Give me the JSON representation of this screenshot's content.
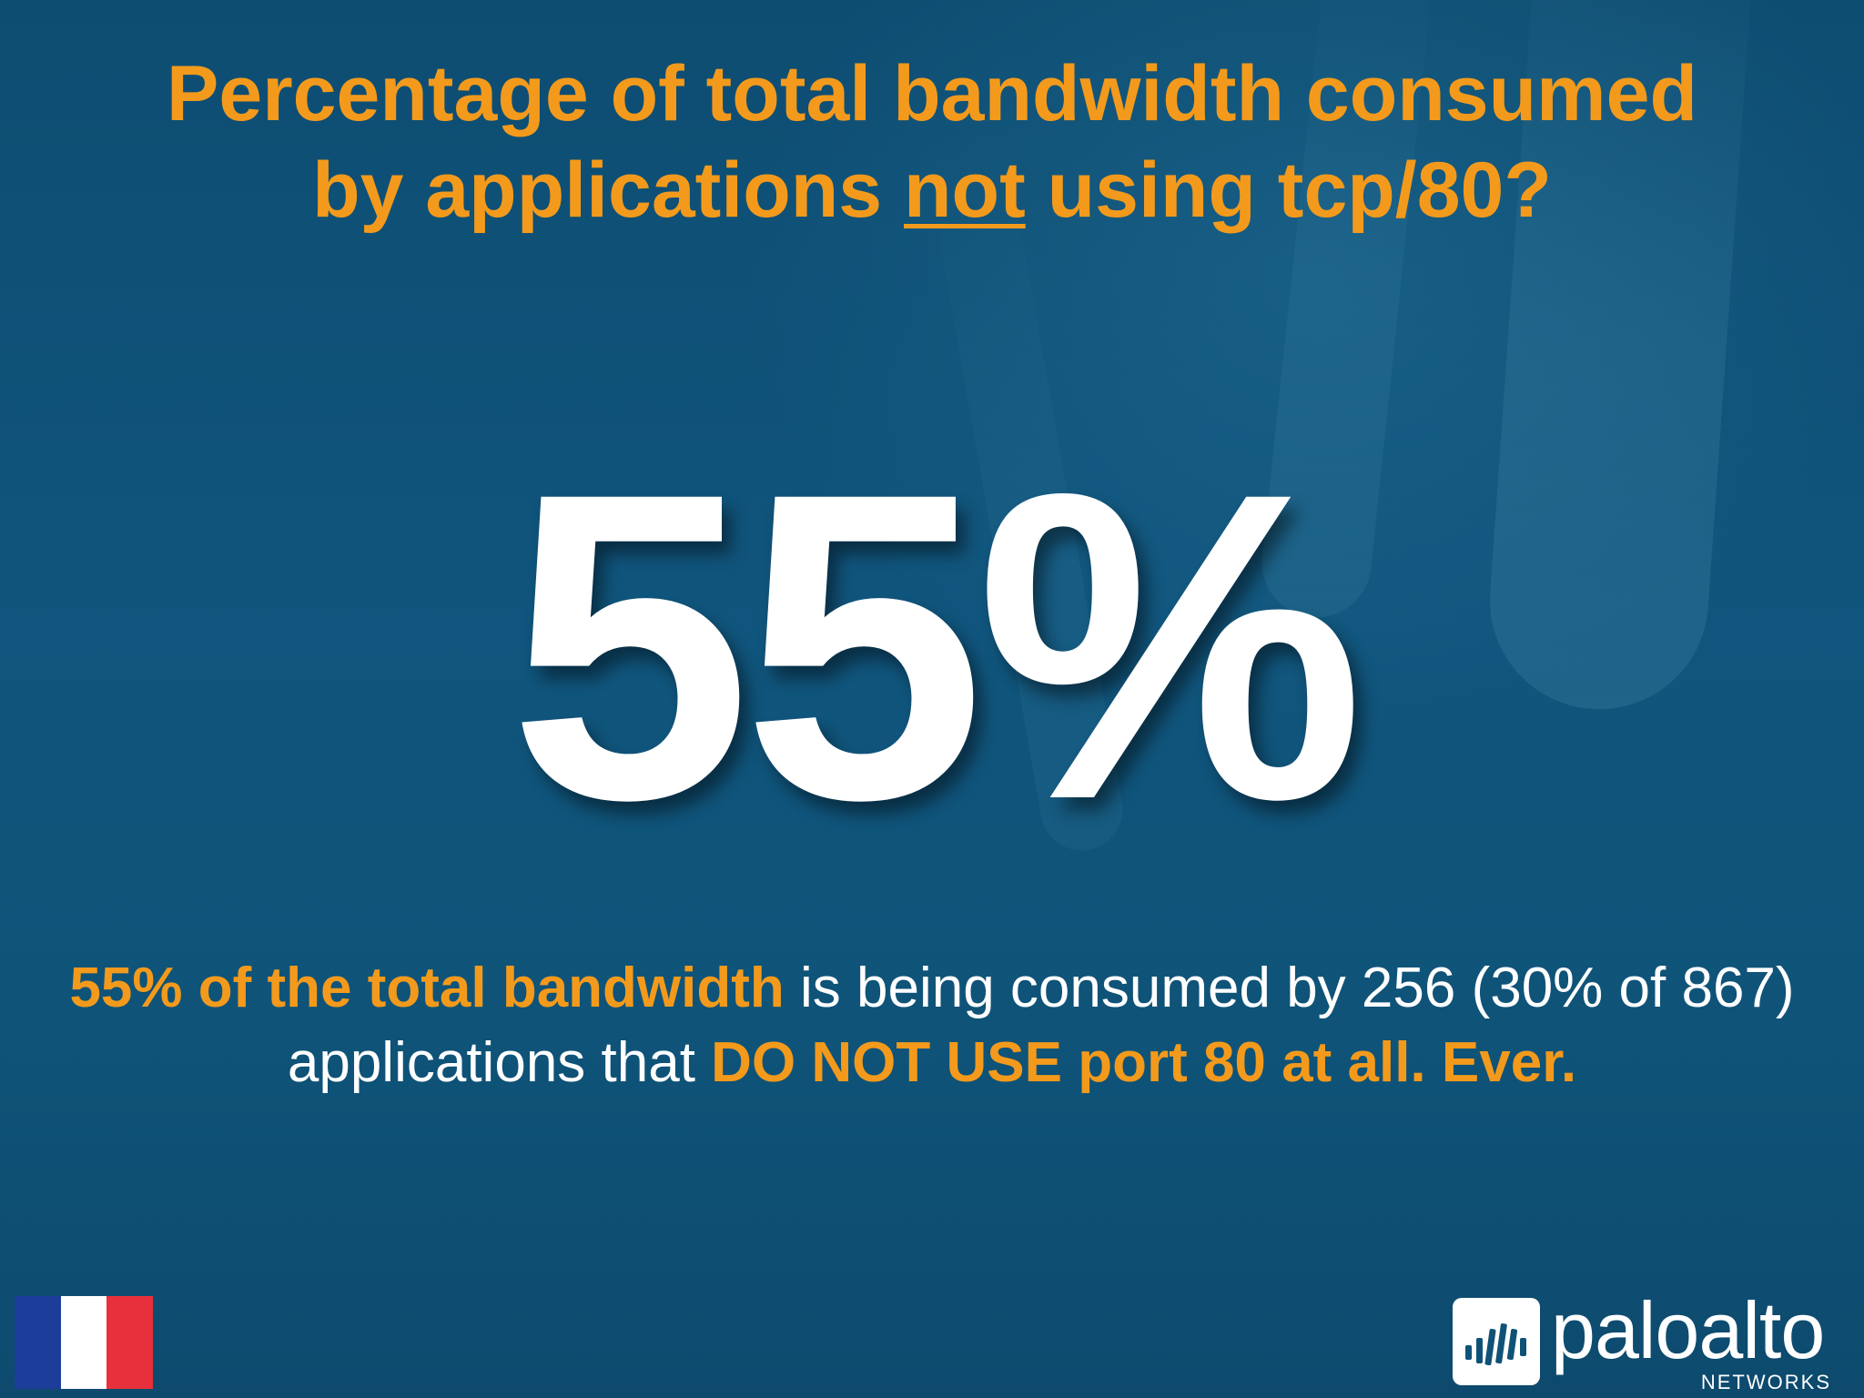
{
  "slide": {
    "title_line1": "Percentage of total bandwidth consumed",
    "title_line2_pre": "by applications ",
    "title_line2_underlined": "not",
    "title_line2_post": " using tcp/80?",
    "big_stat": "55%",
    "caption": {
      "highlight_1": "55% of the total bandwidth",
      "text_1": " is being consumed by 256 (30% of 867) applications that ",
      "highlight_2": "DO NOT USE port 80 at all. Ever."
    }
  },
  "flag": {
    "icon": "france-flag-icon",
    "colors": [
      "#1d3d9a",
      "#ffffff",
      "#e8303c"
    ]
  },
  "logo": {
    "icon": "paloalto-logo-icon",
    "wordmark": "paloalto",
    "sub": "NETWORKS"
  },
  "colors": {
    "accent": "#f39a1c",
    "background": "#0f5278",
    "text": "#ffffff"
  }
}
